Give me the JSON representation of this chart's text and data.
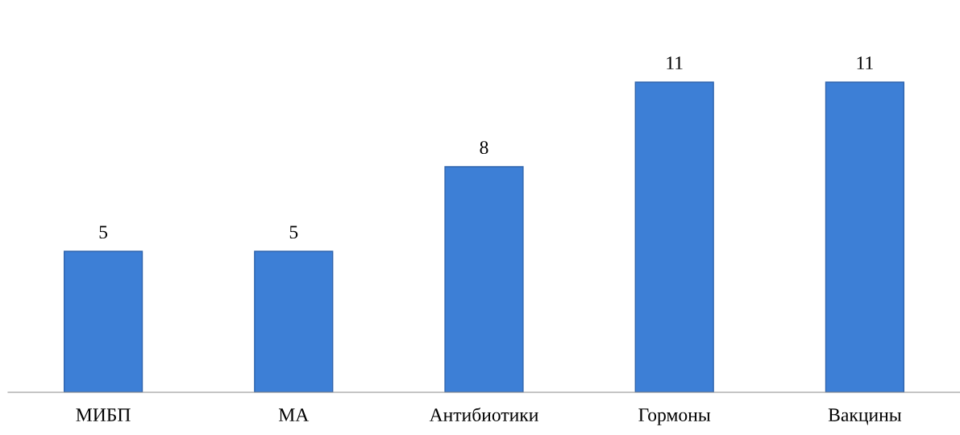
{
  "chart_data": {
    "type": "bar",
    "categories": [
      "МИБП",
      "МА",
      "Антибиотики",
      "Гормоны",
      "Вакцины"
    ],
    "values": [
      5,
      5,
      8,
      11,
      11
    ],
    "color": "#3d7fd6",
    "data_labels": true,
    "grid": false,
    "legend": false
  }
}
